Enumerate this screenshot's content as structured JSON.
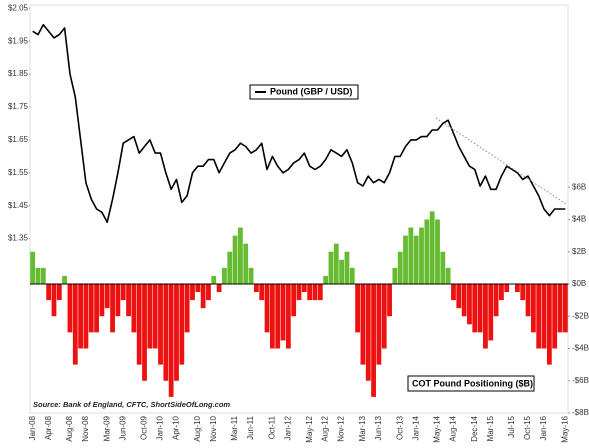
{
  "chart_data": {
    "type": "line_bar",
    "source": "Source: Bank of England, CFTC, ShortSideOfLong.com",
    "categories": [
      "Jan-08",
      null,
      null,
      "Apr-08",
      null,
      null,
      null,
      "Aug-08",
      null,
      null,
      "Nov-08",
      null,
      null,
      null,
      "Mar-09",
      null,
      null,
      "Jun-09",
      null,
      null,
      null,
      "Oct-09",
      null,
      null,
      "Jan-10",
      null,
      null,
      "Apr-10",
      null,
      null,
      null,
      "Aug-10",
      null,
      null,
      "Nov-10",
      null,
      null,
      null,
      "Mar-11",
      null,
      null,
      "Jun-11",
      null,
      null,
      null,
      "Oct-11",
      null,
      null,
      "Jan-12",
      null,
      null,
      null,
      "May-12",
      null,
      null,
      "Aug-12",
      null,
      null,
      "Nov-12",
      null,
      null,
      null,
      "Mar-13",
      null,
      null,
      "Jun-13",
      null,
      null,
      null,
      "Oct-13",
      null,
      null,
      "Jan-14",
      null,
      null,
      null,
      "May-14",
      null,
      null,
      "Aug-14",
      null,
      null,
      null,
      "Dec-14",
      null,
      null,
      "Mar-15",
      null,
      null,
      null,
      "Jul-15",
      null,
      null,
      "Oct-15",
      null,
      null,
      "Jan-16",
      null,
      null,
      null,
      "May-16"
    ],
    "series": [
      {
        "name": "Pound (GBP / USD)",
        "color": "#000000",
        "values": [
          1.98,
          1.97,
          2.0,
          1.98,
          1.96,
          1.97,
          1.99,
          1.85,
          1.78,
          1.65,
          1.52,
          1.47,
          1.44,
          1.43,
          1.4,
          1.47,
          1.55,
          1.64,
          1.65,
          1.66,
          1.61,
          1.63,
          1.65,
          1.61,
          1.61,
          1.55,
          1.5,
          1.53,
          1.46,
          1.48,
          1.55,
          1.57,
          1.57,
          1.59,
          1.59,
          1.55,
          1.58,
          1.61,
          1.62,
          1.64,
          1.63,
          1.61,
          1.62,
          1.64,
          1.56,
          1.6,
          1.57,
          1.55,
          1.56,
          1.58,
          1.59,
          1.61,
          1.57,
          1.56,
          1.57,
          1.59,
          1.62,
          1.61,
          1.6,
          1.62,
          1.58,
          1.52,
          1.51,
          1.54,
          1.52,
          1.53,
          1.52,
          1.55,
          1.6,
          1.6,
          1.63,
          1.65,
          1.65,
          1.66,
          1.66,
          1.68,
          1.68,
          1.7,
          1.71,
          1.67,
          1.63,
          1.6,
          1.57,
          1.56,
          1.51,
          1.54,
          1.5,
          1.5,
          1.54,
          1.57,
          1.56,
          1.55,
          1.53,
          1.54,
          1.51,
          1.48,
          1.44,
          1.42,
          1.44,
          1.44,
          1.44
        ]
      },
      {
        "name": "COT Pound Positioning ($B)",
        "axis": "y2",
        "positive_color": "#66bb33",
        "negative_color": "#ee1111",
        "values": [
          2,
          1,
          1,
          -1,
          -2,
          -1,
          0.5,
          -3,
          -5,
          -4,
          -4,
          -3,
          -3,
          -2,
          -1.5,
          -3,
          -2,
          -1,
          -2,
          -3,
          -5,
          -6,
          -4,
          -4,
          -5,
          -6,
          -7,
          -6,
          -5,
          -3,
          -1,
          -0.5,
          -1.5,
          -1,
          0.5,
          -0.5,
          1,
          2,
          3,
          3.5,
          2.5,
          1,
          -0.5,
          -1,
          -3,
          -4,
          -4,
          -3.5,
          -4,
          -2,
          -1,
          -0.5,
          -1,
          -1,
          -1,
          0.5,
          2,
          2.5,
          1.5,
          2,
          1,
          -3,
          -5,
          -6,
          -7,
          -5,
          -4,
          -2,
          1,
          2,
          3,
          3.5,
          3,
          3.5,
          4,
          4.5,
          4,
          2,
          1,
          -1,
          -1.5,
          -2,
          -2.5,
          -3,
          -3,
          -4,
          -3.5,
          -2,
          -1,
          -0.5,
          0,
          -0.5,
          -1,
          -2,
          -3,
          -4,
          -4,
          -5,
          -4,
          -3,
          -3
        ]
      }
    ],
    "ylim": [
      0.82,
      2.06
    ],
    "yticks": [
      {
        "value": 1.35,
        "label": "$1.35"
      },
      {
        "value": 1.45,
        "label": "$1.45"
      },
      {
        "value": 1.55,
        "label": "$1.55"
      },
      {
        "value": 1.65,
        "label": "$1.65"
      },
      {
        "value": 1.75,
        "label": "$1.75"
      },
      {
        "value": 1.85,
        "label": "$1.85"
      },
      {
        "value": 1.95,
        "label": "$1.95"
      },
      {
        "value": 2.05,
        "label": "$2.05"
      }
    ],
    "y2lim": [
      -8,
      17.3
    ],
    "y2ticks": [
      {
        "value": -8,
        "label": "-$8B"
      },
      {
        "value": -6,
        "label": "-$6B"
      },
      {
        "value": -4,
        "label": "-$4B"
      },
      {
        "value": -2,
        "label": "-$2B"
      },
      {
        "value": 0,
        "label": "$0B"
      },
      {
        "value": 2,
        "label": "$2B"
      },
      {
        "value": 4,
        "label": "$4B"
      },
      {
        "value": 6,
        "label": "$6B"
      }
    ]
  }
}
